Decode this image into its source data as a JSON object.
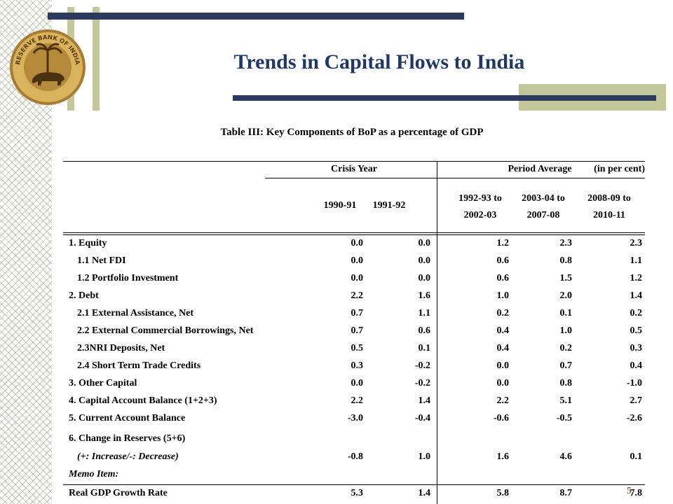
{
  "title": "Trends in Capital Flows to India",
  "seal": {
    "top_text": "RESERVE BANK OF INDIA",
    "bottom_text": ""
  },
  "table": {
    "caption": "Table III: Key Components of BoP as a percentage of GDP",
    "unit": "(in per cent)",
    "groups": [
      "Crisis Year",
      "Period Average"
    ],
    "columns": [
      "1990-91",
      "1991-92",
      "1992-93 to",
      "2002-03",
      "2003-04 to",
      "2007-08",
      "2008-09 to",
      "2010-11"
    ],
    "rows": [
      {
        "label": "1. Equity",
        "values": [
          "0.0",
          "0.0",
          "1.2",
          "2.3",
          "2.3"
        ]
      },
      {
        "label": "1.1 Net FDI",
        "values": [
          "0.0",
          "0.0",
          "0.6",
          "0.8",
          "1.1"
        ]
      },
      {
        "label": "1.2 Portfolio Investment",
        "values": [
          "0.0",
          "0.0",
          "0.6",
          "1.5",
          "1.2"
        ]
      },
      {
        "label": "2. Debt",
        "values": [
          "2.2",
          "1.6",
          "1.0",
          "2.0",
          "1.4"
        ]
      },
      {
        "label": "2.1 External Assistance, Net",
        "values": [
          "0.7",
          "1.1",
          "0.2",
          "0.1",
          "0.2"
        ]
      },
      {
        "label": "2.2 External Commercial Borrowings, Net",
        "values": [
          "0.7",
          "0.6",
          "0.4",
          "1.0",
          "0.5"
        ]
      },
      {
        "label": "2.3NRI Deposits, Net",
        "values": [
          "0.5",
          "0.1",
          "0.4",
          "0.2",
          "0.3"
        ]
      },
      {
        "label": "2.4 Short Term Trade Credits",
        "values": [
          "0.3",
          "-0.2",
          "0.0",
          "0.7",
          "0.4"
        ]
      },
      {
        "label": "3. Other Capital",
        "values": [
          "0.0",
          "-0.2",
          "0.0",
          "0.8",
          "-1.0"
        ]
      },
      {
        "label": "4. Capital Account Balance (1+2+3)",
        "values": [
          "2.2",
          "1.4",
          "2.2",
          "5.1",
          "2.7"
        ]
      },
      {
        "label": "5. Current Account Balance",
        "values": [
          "-3.0",
          "-0.4",
          "-0.6",
          "-0.5",
          "-2.6"
        ]
      },
      {
        "label": "6. Change in Reserves (5+6)",
        "values": [
          "",
          "",
          "",
          "",
          ""
        ]
      },
      {
        "label": "(+: Increase/-: Decrease)",
        "values": [
          "-0.8",
          "1.0",
          "1.6",
          "4.6",
          "0.1"
        ]
      },
      {
        "label": "Memo Item:",
        "values": [
          "",
          "",
          "",
          "",
          ""
        ]
      },
      {
        "label": "Real GDP Growth Rate",
        "values": [
          "5.3",
          "1.4",
          "5.8",
          "8.7",
          "7.8"
        ]
      }
    ]
  },
  "page_number": "5"
}
